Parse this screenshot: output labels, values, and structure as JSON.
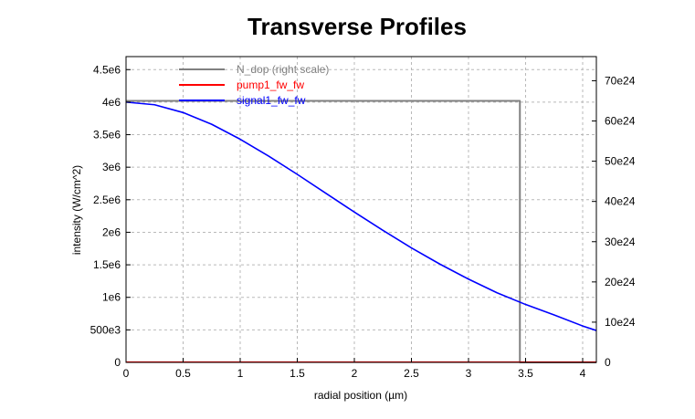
{
  "chart_data": {
    "type": "line",
    "title": "Transverse Profiles",
    "xlabel": "radial position (µm)",
    "ylabel": "intensity (W/cm^2)",
    "xlim": [
      0,
      4.12
    ],
    "ylim": [
      0,
      4700000
    ],
    "y2lim": [
      0,
      76000000000000000000000000
    ],
    "x_ticks": [
      0,
      0.5,
      1,
      1.5,
      2,
      2.5,
      3,
      3.5,
      4
    ],
    "x_tick_labels": [
      "0",
      "0.5",
      "1",
      "1.5",
      "2",
      "2.5",
      "3",
      "3.5",
      "4"
    ],
    "y_ticks": [
      0,
      500000,
      1000000,
      1500000,
      2000000,
      2500000,
      3000000,
      3500000,
      4000000,
      4500000
    ],
    "y_tick_labels": [
      "0",
      "500e3",
      "1e6",
      "1.5e6",
      "2e6",
      "2.5e6",
      "3e6",
      "3.5e6",
      "4e6",
      "4.5e6"
    ],
    "y2_ticks": [
      0,
      10000000000000000000000000,
      20000000000000000000000000,
      30000000000000000000000000,
      40000000000000000000000000,
      50000000000000000000000000,
      60000000000000000000000000,
      70000000000000000000000000
    ],
    "y2_tick_labels": [
      "0",
      "10e24",
      "20e24",
      "30e24",
      "40e24",
      "50e24",
      "60e24",
      "70e24"
    ],
    "grid": true,
    "legend_position": "top-left",
    "series": [
      {
        "name": "N_dop (right scale)",
        "color": "#808080",
        "axis": "right",
        "x": [
          0,
          3.45,
          3.45,
          4.12
        ],
        "y": [
          65000000000000000000000000,
          65000000000000000000000000,
          0,
          0
        ]
      },
      {
        "name": "pump1_fw_fw",
        "color": "#ff0000",
        "axis": "left",
        "x": [
          0,
          4.12
        ],
        "y": [
          5000,
          5000
        ]
      },
      {
        "name": "signal1_fw_fw",
        "color": "#0000ff",
        "axis": "left",
        "x": [
          0,
          0.25,
          0.5,
          0.75,
          1,
          1.25,
          1.5,
          1.75,
          2,
          2.25,
          2.5,
          2.75,
          3,
          3.25,
          3.5,
          3.75,
          4,
          4.12
        ],
        "y": [
          4000000,
          3960000,
          3840000,
          3660000,
          3430000,
          3170000,
          2890000,
          2600000,
          2310000,
          2030000,
          1760000,
          1510000,
          1280000,
          1070000,
          890000,
          730000,
          560000,
          490000
        ]
      }
    ]
  }
}
